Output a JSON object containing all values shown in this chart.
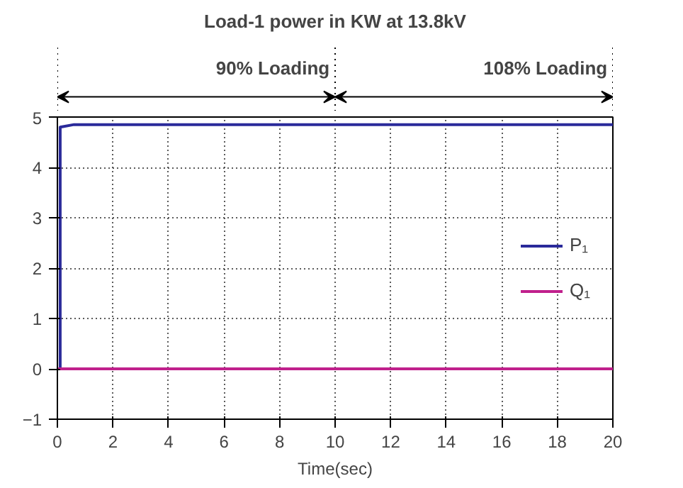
{
  "chart_data": {
    "type": "line",
    "title": "Load-1 power in KW at 13.8kV",
    "xlabel": "Time(sec)",
    "annotations": [
      "90% Loading",
      "108% Loading"
    ],
    "series": [
      {
        "name": "P₁",
        "color": "#2a2a9a",
        "x": [
          0,
          0.1,
          0.1,
          0.6,
          20
        ],
        "values": [
          0,
          0,
          4.8,
          4.85,
          4.85
        ]
      },
      {
        "name": "Q₁",
        "color": "#c0208c",
        "x": [
          0,
          20
        ],
        "values": [
          0,
          0
        ]
      }
    ],
    "xlim": [
      0,
      20
    ],
    "ylim": [
      -1,
      5
    ],
    "xticks": [
      0,
      2,
      4,
      6,
      8,
      10,
      12,
      14,
      16,
      18,
      20
    ],
    "yticks": [
      -1,
      0,
      1,
      2,
      3,
      4,
      5
    ],
    "grid": true,
    "legend": "right",
    "line_style": "solid",
    "marker": "none"
  }
}
